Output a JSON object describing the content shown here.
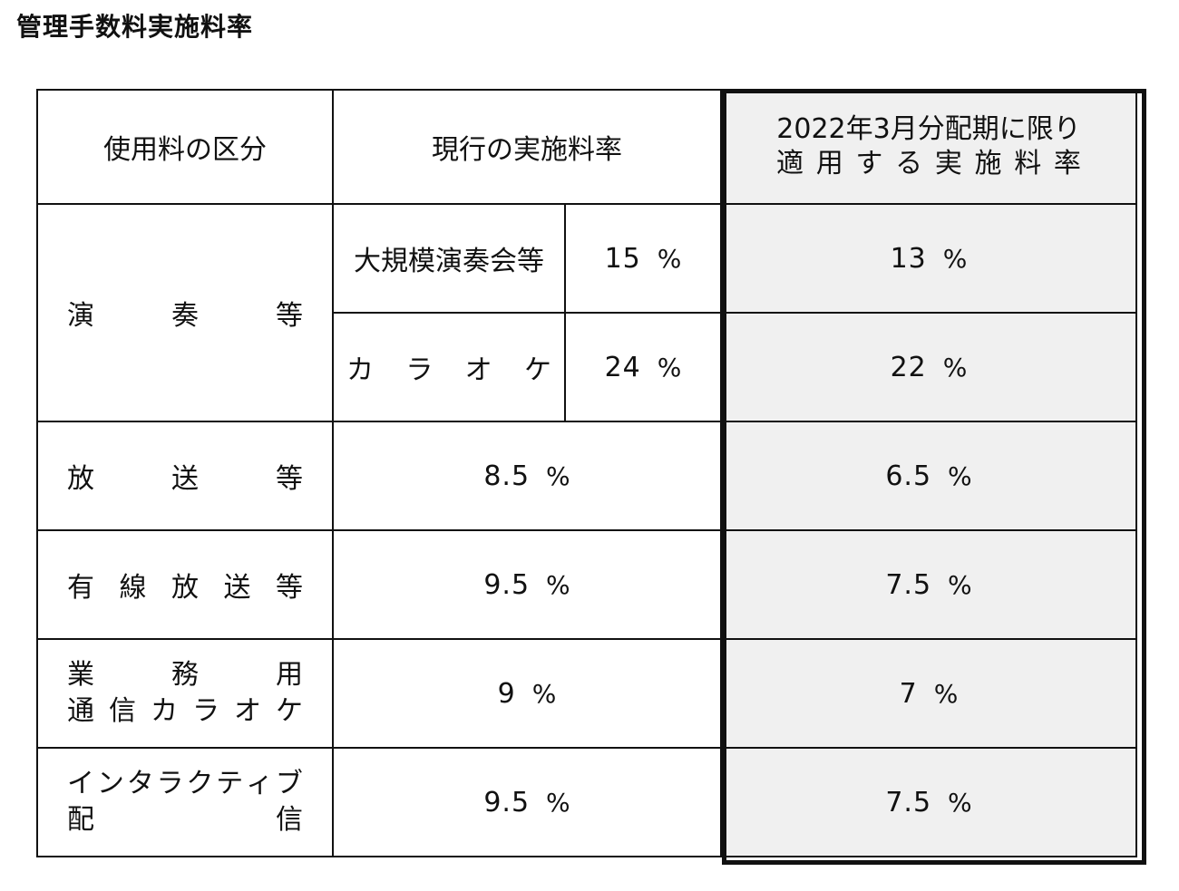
{
  "title": "管理手数料実施料率",
  "headers": {
    "category": "使用料の区分",
    "current": "現行の実施料率",
    "special_line1": "2022年3月分配期に限り",
    "special_line2": [
      "適",
      "用",
      "す",
      "る",
      "実",
      "施",
      "料",
      "率"
    ]
  },
  "performance": {
    "category": [
      "演",
      "奏",
      "等"
    ],
    "large_concert": {
      "label": "大規模演奏会等",
      "current": "15",
      "special": "13"
    },
    "karaoke": {
      "label": [
        "カ",
        "ラ",
        "オ",
        "ケ"
      ],
      "current": "24",
      "special": "22"
    }
  },
  "rows": [
    {
      "category_line1": [
        "放",
        "送",
        "等"
      ],
      "current": "8.5",
      "special": "6.5"
    },
    {
      "category_line1": [
        "有",
        "線",
        "放",
        "送",
        "等"
      ],
      "current": "9.5",
      "special": "7.5"
    },
    {
      "category_line1": [
        "業",
        "務",
        "用"
      ],
      "category_line2": [
        "通",
        "信",
        "カ",
        "ラ",
        "オ",
        "ケ"
      ],
      "current": "9",
      "special": "7"
    },
    {
      "category_line1": [
        "イ",
        "ン",
        "タ",
        "ラ",
        "ク",
        "テ",
        "ィ",
        "ブ"
      ],
      "category_line2": [
        "配",
        "信"
      ],
      "current": "9.5",
      "special": "7.5"
    }
  ],
  "percent_sign": "%"
}
